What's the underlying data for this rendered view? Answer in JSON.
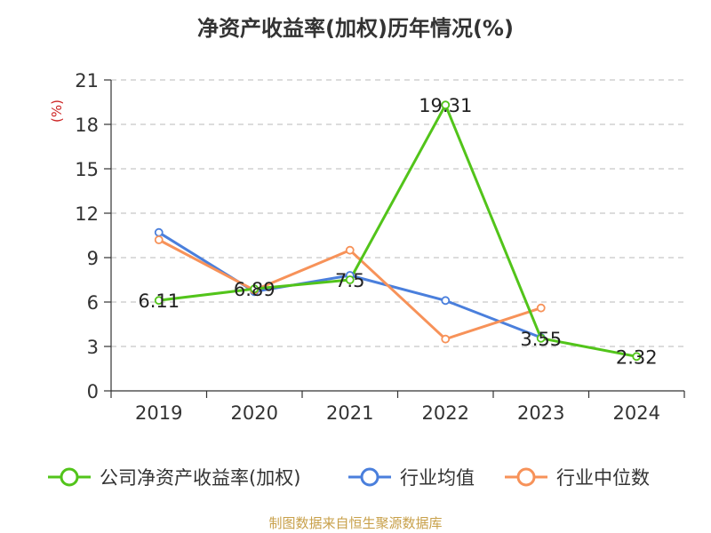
{
  "chart_data": {
    "type": "line",
    "title": "净资产收益率(加权)历年情况(%)",
    "ylabel": "(%)",
    "xlabel": "",
    "ylim": [
      0,
      21
    ],
    "yticks": [
      0,
      3,
      6,
      9,
      12,
      15,
      18,
      21
    ],
    "categories": [
      "2019",
      "2020",
      "2021",
      "2022",
      "2023",
      "2024"
    ],
    "grid": "horizontal-dashed",
    "legend_position": "bottom",
    "series": [
      {
        "name": "公司净资产收益率(加权)",
        "color": "#52c41a",
        "values": [
          6.11,
          6.89,
          7.5,
          19.31,
          3.55,
          2.32
        ],
        "labels": [
          "6.11",
          "6.89",
          "7.5",
          "19.31",
          "3.55",
          "2.32"
        ]
      },
      {
        "name": "行业均值",
        "color": "#4a7fdc",
        "values": [
          10.7,
          6.7,
          7.8,
          6.1,
          3.6,
          null
        ]
      },
      {
        "name": "行业中位数",
        "color": "#f79259",
        "values": [
          10.2,
          6.8,
          9.5,
          3.5,
          5.6,
          null
        ]
      }
    ]
  },
  "footer": {
    "source": "制图数据来自恒生聚源数据库"
  }
}
